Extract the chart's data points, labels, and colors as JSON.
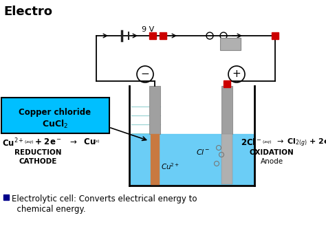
{
  "bg_color": "#ffffff",
  "solution_color": "#5bc8f5",
  "cathode_color": "#c87941",
  "wire_color": "#000000",
  "battery_color": "#222222",
  "red_color": "#cc0000",
  "cyan_box_color": "#00bfff",
  "blue_square": "#00008b",
  "gray_electrode": "#999999",
  "title": "Electro",
  "voltage": "9 V",
  "copper_chloride": "Copper chloride",
  "cucl2": "CuCl$_2$",
  "reduction_text": "REDUCTION",
  "cathode_text": "CATHODE",
  "oxidation_text": "OXIDATION",
  "anode_text": "Anode",
  "bottom1": "Electrolytic cell: Converts electrical energy to",
  "bottom2": "chemical energy."
}
